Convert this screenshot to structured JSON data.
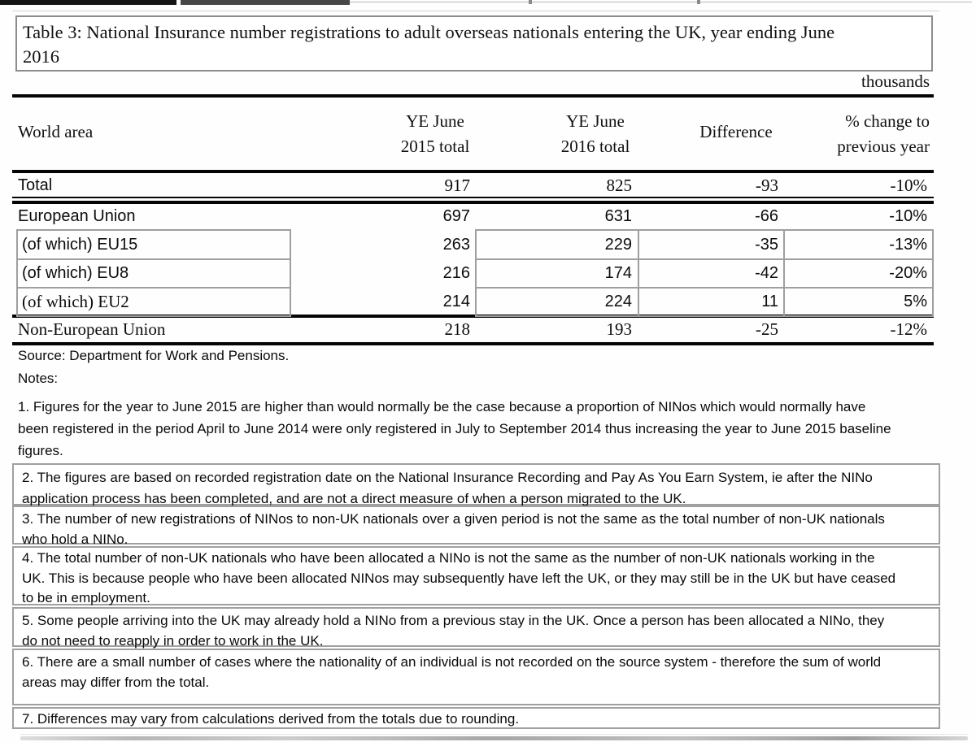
{
  "title": {
    "line1": "Table 3: National Insurance number registrations to adult overseas nationals entering the UK, year ending June",
    "line2": "2016"
  },
  "unit_label": "thousands",
  "table": {
    "header": {
      "world_area": "World area",
      "ye2015_line1": "YE June",
      "ye2015_line2": "2015 total",
      "ye2016_line1": "YE June",
      "ye2016_line2": "2016 total",
      "difference": "Difference",
      "pct_line1": "% change to",
      "pct_line2": "previous year"
    },
    "rows": [
      {
        "label": "Total",
        "ye2015": "917",
        "ye2016": "825",
        "difference": "-93",
        "pct_change": "-10%"
      },
      {
        "label": "European Union",
        "ye2015": "697",
        "ye2016": "631",
        "difference": "-66",
        "pct_change": "-10%"
      },
      {
        "label": "(of which) EU15",
        "ye2015": "263",
        "ye2016": "229",
        "difference": "-35",
        "pct_change": "-13%"
      },
      {
        "label": "(of which) EU8",
        "ye2015": "216",
        "ye2016": "174",
        "difference": "-42",
        "pct_change": "-20%"
      },
      {
        "label": "(of which) EU2",
        "ye2015": "214",
        "ye2016": "224",
        "difference": "11",
        "pct_change": "5%"
      },
      {
        "label": "Non-European Union",
        "ye2015": "218",
        "ye2016": "193",
        "difference": "-25",
        "pct_change": "-12%"
      }
    ]
  },
  "source": "Source: Department for Work and Pensions.",
  "notes_heading": "Notes:",
  "notes": {
    "n1": "1. Figures for the year to June 2015 are higher than would normally be the case because a proportion of NINos which would normally have been registered in the period April to June 2014 were only registered in July to September 2014 thus increasing the year to June 2015 baseline figures.",
    "n2": "2. The figures are based on recorded registration date on the National Insurance Recording and Pay As You Earn System, ie after the NINo application process has been completed, and are not a direct measure of when a person migrated to the UK.",
    "n3": "3. The number of new registrations of NINos to non-UK nationals over a given period is not the same as the total number of non-UK nationals who hold a NINo.",
    "n4": "4. The total number of non-UK nationals who have been allocated a NINo is not the same as the number of non-UK nationals working in the UK. This is because people who have been allocated NINos may subsequently have left the UK, or they may still be in the UK but have ceased to be in employment.",
    "n5": "5. Some people arriving into the UK may already hold a NINo from a previous stay in the UK. Once a person has been allocated a NINo, they do not need to reapply in order to work in the UK.",
    "n6": "6. There are a small number of cases where the nationality of an individual is not recorded on the source system - therefore the sum of world areas may differ from the total.",
    "n7": "7. Differences may vary from calculations derived from the totals due to rounding."
  }
}
